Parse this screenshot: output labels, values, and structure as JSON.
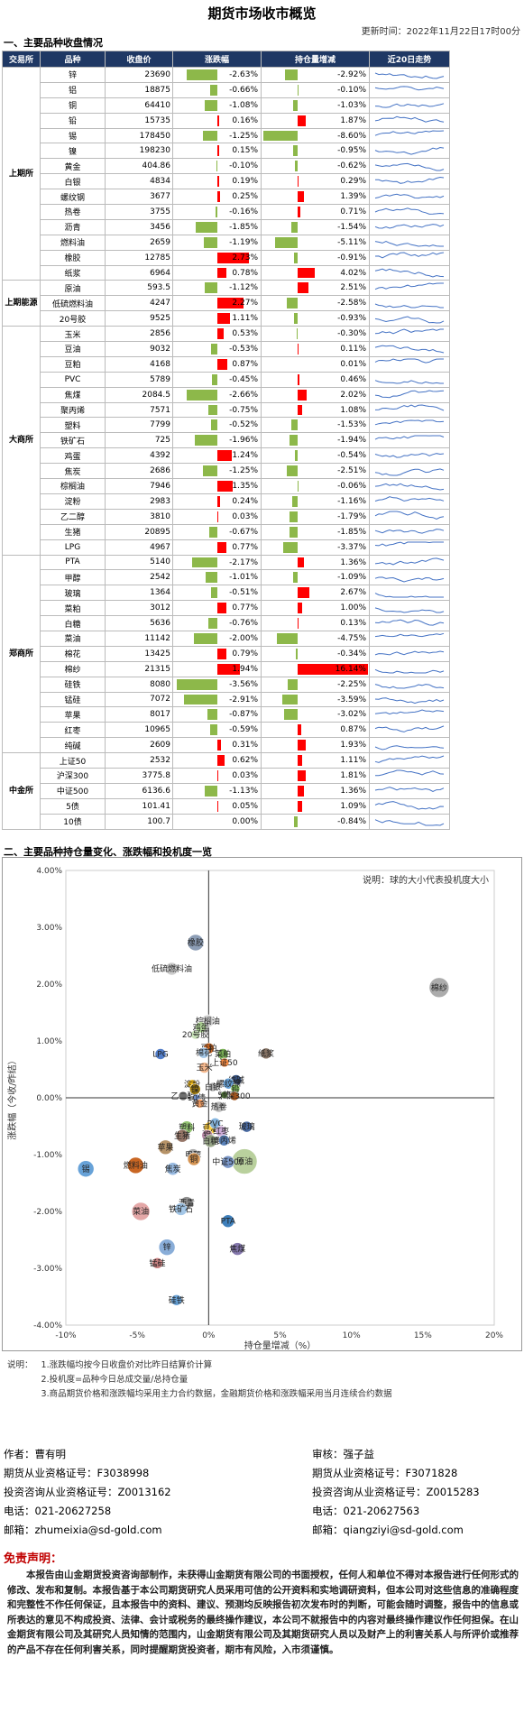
{
  "header": {
    "title": "期货市场收市概览",
    "update": "更新时间：2022年11月22日17时00分"
  },
  "section1": "一、主要品种收盘情况",
  "section2": "二、主要品种持仓量变化、涨跌幅和投机度一览",
  "columns": [
    "交易所",
    "品种",
    "收盘价",
    "涨跌幅",
    "持仓量增减",
    "近20日走势"
  ],
  "colors": {
    "header_bg": "#1f3864",
    "up": "#ff0000",
    "down": "#8db84a"
  },
  "exchanges": [
    {
      "name": "上期所",
      "rows": [
        {
          "n": "锌",
          "p": "23690",
          "c": "-2.63%",
          "cv": -2.63,
          "o": "-2.92%",
          "ov": -2.92
        },
        {
          "n": "铝",
          "p": "18875",
          "c": "-0.66%",
          "cv": -0.66,
          "o": "-0.10%",
          "ov": -0.1
        },
        {
          "n": "铜",
          "p": "64410",
          "c": "-1.08%",
          "cv": -1.08,
          "o": "-1.03%",
          "ov": -1.03
        },
        {
          "n": "铅",
          "p": "15735",
          "c": "0.16%",
          "cv": 0.16,
          "o": "1.87%",
          "ov": 1.87
        },
        {
          "n": "锡",
          "p": "178450",
          "c": "-1.25%",
          "cv": -1.25,
          "o": "-8.60%",
          "ov": -8.6
        },
        {
          "n": "镍",
          "p": "198230",
          "c": "0.15%",
          "cv": 0.15,
          "o": "-0.95%",
          "ov": -0.95
        },
        {
          "n": "黄金",
          "p": "404.86",
          "c": "-0.10%",
          "cv": -0.1,
          "o": "-0.62%",
          "ov": -0.62
        },
        {
          "n": "白银",
          "p": "4834",
          "c": "0.19%",
          "cv": 0.19,
          "o": "0.29%",
          "ov": 0.29
        },
        {
          "n": "螺纹钢",
          "p": "3677",
          "c": "0.25%",
          "cv": 0.25,
          "o": "1.39%",
          "ov": 1.39
        },
        {
          "n": "热卷",
          "p": "3755",
          "c": "-0.16%",
          "cv": -0.16,
          "o": "0.71%",
          "ov": 0.71
        },
        {
          "n": "沥青",
          "p": "3456",
          "c": "-1.85%",
          "cv": -1.85,
          "o": "-1.54%",
          "ov": -1.54
        },
        {
          "n": "燃料油",
          "p": "2659",
          "c": "-1.19%",
          "cv": -1.19,
          "o": "-5.11%",
          "ov": -5.11
        },
        {
          "n": "橡胶",
          "p": "12785",
          "c": "2.73%",
          "cv": 2.73,
          "o": "-0.91%",
          "ov": -0.91
        },
        {
          "n": "纸浆",
          "p": "6964",
          "c": "0.78%",
          "cv": 0.78,
          "o": "4.02%",
          "ov": 4.02
        }
      ]
    },
    {
      "name": "上期能源",
      "rows": [
        {
          "n": "原油",
          "p": "593.5",
          "c": "-1.12%",
          "cv": -1.12,
          "o": "2.51%",
          "ov": 2.51
        },
        {
          "n": "低硫燃料油",
          "p": "4247",
          "c": "2.27%",
          "cv": 2.27,
          "o": "-2.58%",
          "ov": -2.58
        },
        {
          "n": "20号胶",
          "p": "9525",
          "c": "1.11%",
          "cv": 1.11,
          "o": "-0.93%",
          "ov": -0.93
        }
      ]
    },
    {
      "name": "大商所",
      "rows": [
        {
          "n": "玉米",
          "p": "2856",
          "c": "0.53%",
          "cv": 0.53,
          "o": "-0.30%",
          "ov": -0.3
        },
        {
          "n": "豆油",
          "p": "9032",
          "c": "-0.53%",
          "cv": -0.53,
          "o": "0.11%",
          "ov": 0.11
        },
        {
          "n": "豆粕",
          "p": "4168",
          "c": "0.87%",
          "cv": 0.87,
          "o": "0.01%",
          "ov": 0.01
        },
        {
          "n": "PVC",
          "p": "5789",
          "c": "-0.45%",
          "cv": -0.45,
          "o": "0.46%",
          "ov": 0.46
        },
        {
          "n": "焦煤",
          "p": "2084.5",
          "c": "-2.66%",
          "cv": -2.66,
          "o": "2.02%",
          "ov": 2.02
        },
        {
          "n": "聚丙烯",
          "p": "7571",
          "c": "-0.75%",
          "cv": -0.75,
          "o": "1.08%",
          "ov": 1.08
        },
        {
          "n": "塑料",
          "p": "7799",
          "c": "-0.52%",
          "cv": -0.52,
          "o": "-1.53%",
          "ov": -1.53
        },
        {
          "n": "铁矿石",
          "p": "725",
          "c": "-1.96%",
          "cv": -1.96,
          "o": "-1.94%",
          "ov": -1.94
        },
        {
          "n": "鸡蛋",
          "p": "4392",
          "c": "1.24%",
          "cv": 1.24,
          "o": "-0.54%",
          "ov": -0.54
        },
        {
          "n": "焦炭",
          "p": "2686",
          "c": "-1.25%",
          "cv": -1.25,
          "o": "-2.51%",
          "ov": -2.51
        },
        {
          "n": "棕榈油",
          "p": "7946",
          "c": "1.35%",
          "cv": 1.35,
          "o": "-0.06%",
          "ov": -0.06
        },
        {
          "n": "淀粉",
          "p": "2983",
          "c": "0.24%",
          "cv": 0.24,
          "o": "-1.16%",
          "ov": -1.16
        },
        {
          "n": "乙二醇",
          "p": "3810",
          "c": "0.03%",
          "cv": 0.03,
          "o": "-1.79%",
          "ov": -1.79
        },
        {
          "n": "生猪",
          "p": "20895",
          "c": "-0.67%",
          "cv": -0.67,
          "o": "-1.85%",
          "ov": -1.85
        },
        {
          "n": "LPG",
          "p": "4967",
          "c": "0.77%",
          "cv": 0.77,
          "o": "-3.37%",
          "ov": -3.37
        }
      ]
    },
    {
      "name": "郑商所",
      "rows": [
        {
          "n": "PTA",
          "p": "5140",
          "c": "-2.17%",
          "cv": -2.17,
          "o": "1.36%",
          "ov": 1.36
        },
        {
          "n": "甲醇",
          "p": "2542",
          "c": "-1.01%",
          "cv": -1.01,
          "o": "-1.09%",
          "ov": -1.09
        },
        {
          "n": "玻璃",
          "p": "1364",
          "c": "-0.51%",
          "cv": -0.51,
          "o": "2.67%",
          "ov": 2.67
        },
        {
          "n": "菜粕",
          "p": "3012",
          "c": "0.77%",
          "cv": 0.77,
          "o": "1.00%",
          "ov": 1.0
        },
        {
          "n": "白糖",
          "p": "5636",
          "c": "-0.76%",
          "cv": -0.76,
          "o": "0.13%",
          "ov": 0.13
        },
        {
          "n": "菜油",
          "p": "11142",
          "c": "-2.00%",
          "cv": -2.0,
          "o": "-4.75%",
          "ov": -4.75
        },
        {
          "n": "棉花",
          "p": "13425",
          "c": "0.79%",
          "cv": 0.79,
          "o": "-0.34%",
          "ov": -0.34
        },
        {
          "n": "棉纱",
          "p": "21315",
          "c": "1.94%",
          "cv": 1.94,
          "o": "16.14%",
          "ov": 16.14
        },
        {
          "n": "硅铁",
          "p": "8080",
          "c": "-3.56%",
          "cv": -3.56,
          "o": "-2.25%",
          "ov": -2.25
        },
        {
          "n": "锰硅",
          "p": "7072",
          "c": "-2.91%",
          "cv": -2.91,
          "o": "-3.59%",
          "ov": -3.59
        },
        {
          "n": "苹果",
          "p": "8017",
          "c": "-0.87%",
          "cv": -0.87,
          "o": "-3.02%",
          "ov": -3.02
        },
        {
          "n": "红枣",
          "p": "10965",
          "c": "-0.59%",
          "cv": -0.59,
          "o": "0.87%",
          "ov": 0.87
        },
        {
          "n": "纯碱",
          "p": "2609",
          "c": "0.31%",
          "cv": 0.31,
          "o": "1.93%",
          "ov": 1.93
        }
      ]
    },
    {
      "name": "中金所",
      "rows": [
        {
          "n": "上证50",
          "p": "2532",
          "c": "0.62%",
          "cv": 0.62,
          "o": "1.11%",
          "ov": 1.11
        },
        {
          "n": "沪深300",
          "p": "3775.8",
          "c": "0.03%",
          "cv": 0.03,
          "o": "1.81%",
          "ov": 1.81
        },
        {
          "n": "中证500",
          "p": "6136.6",
          "c": "-1.13%",
          "cv": -1.13,
          "o": "1.36%",
          "ov": 1.36
        },
        {
          "n": "5债",
          "p": "101.41",
          "c": "0.05%",
          "cv": 0.05,
          "o": "1.09%",
          "ov": 1.09
        },
        {
          "n": "10债",
          "p": "100.7",
          "c": "0.00%",
          "cv": 0.0,
          "o": "-0.84%",
          "ov": -0.84
        }
      ]
    }
  ],
  "chart_data": {
    "type": "scatter",
    "note": "说明：球的大小代表投机度大小",
    "xlabel": "持仓量增减（%）",
    "ylabel": "涨跌幅（今收/昨结）",
    "xlim": [
      -10,
      20
    ],
    "ylim": [
      -4,
      4
    ],
    "xticks": [
      "-10%",
      "-5%",
      "0%",
      "5%",
      "10%",
      "15%",
      "20%"
    ],
    "yticks": [
      "4.00%",
      "3.00%",
      "2.00%",
      "1.00%",
      "0.00%",
      "-1.00%",
      "-2.00%",
      "-3.00%",
      "-4.00%"
    ],
    "points": [
      {
        "label": "橡胶",
        "x": -0.91,
        "y": 2.73,
        "s": 9,
        "c": "#8496b0"
      },
      {
        "label": "低硫燃料油",
        "x": -2.58,
        "y": 2.27,
        "s": 7,
        "c": "#c8c8c8"
      },
      {
        "label": "棕榈油",
        "x": -0.06,
        "y": 1.35,
        "s": 7,
        "c": "#d9d9d9"
      },
      {
        "label": "鸡蛋",
        "x": -0.54,
        "y": 1.24,
        "s": 6,
        "c": "#a9d18e"
      },
      {
        "label": "20号胶",
        "x": -0.93,
        "y": 1.11,
        "s": 5,
        "c": "#c5e0b4"
      },
      {
        "label": "纸浆",
        "x": 4.02,
        "y": 0.78,
        "s": 6,
        "c": "#7f6a5a"
      },
      {
        "label": "豆粕",
        "x": 0.01,
        "y": 0.87,
        "s": 6,
        "c": "#c55a11"
      },
      {
        "label": "菜油",
        "x": -4.75,
        "y": -2.0,
        "s": 10,
        "c": "#e2a0a0"
      },
      {
        "label": "棉花",
        "x": -0.34,
        "y": 0.79,
        "s": 6,
        "c": "#9dc3e6"
      },
      {
        "label": "玉米",
        "x": -0.3,
        "y": 0.53,
        "s": 6,
        "c": "#f4b183"
      },
      {
        "label": "硅铁",
        "x": -2.25,
        "y": -3.56,
        "s": 6,
        "c": "#5b9bd5"
      },
      {
        "label": "菜粕",
        "x": 1.0,
        "y": 0.77,
        "s": 6,
        "c": "#70ad47"
      },
      {
        "label": "LPG",
        "x": -3.37,
        "y": 0.77,
        "s": 6,
        "c": "#4472c4"
      },
      {
        "label": "上证50",
        "x": 1.11,
        "y": 0.62,
        "s": 5,
        "c": "#ed7d31"
      },
      {
        "label": "纯碱",
        "x": 1.93,
        "y": 0.31,
        "s": 6,
        "c": "#264478"
      },
      {
        "label": "白银",
        "x": 0.29,
        "y": 0.19,
        "s": 5,
        "c": "#a5a5a5"
      },
      {
        "label": "淀粉",
        "x": -1.16,
        "y": 0.24,
        "s": 5,
        "c": "#ffc000"
      },
      {
        "label": "螺纹钢",
        "x": 1.39,
        "y": 0.25,
        "s": 6,
        "c": "#5b9bd5"
      },
      {
        "label": "铅",
        "x": 1.87,
        "y": 0.16,
        "s": 5,
        "c": "#70ad47"
      },
      {
        "label": "沪深300",
        "x": 1.81,
        "y": 0.03,
        "s": 5,
        "c": "#9e480e"
      },
      {
        "label": "乙二醇",
        "x": -1.79,
        "y": 0.03,
        "s": 5,
        "c": "#636363"
      },
      {
        "label": "镍",
        "x": -0.95,
        "y": 0.15,
        "s": 6,
        "c": "#997300"
      },
      {
        "label": "5债",
        "x": 1.09,
        "y": 0.05,
        "s": 4,
        "c": "#43682b"
      },
      {
        "label": "10债",
        "x": -0.84,
        "y": 0.0,
        "s": 4,
        "c": "#698ed0"
      },
      {
        "label": "黄金",
        "x": -0.62,
        "y": -0.1,
        "s": 5,
        "c": "#f1975a"
      },
      {
        "label": "热卷",
        "x": 0.71,
        "y": -0.16,
        "s": 6,
        "c": "#b7b7b7"
      },
      {
        "label": "豆油",
        "x": 0.11,
        "y": -0.53,
        "s": 7,
        "c": "#ffcd33"
      },
      {
        "label": "PVC",
        "x": 0.46,
        "y": -0.45,
        "s": 6,
        "c": "#7cafdd"
      },
      {
        "label": "塑料",
        "x": -1.53,
        "y": -0.52,
        "s": 7,
        "c": "#8cc168"
      },
      {
        "label": "玻璃",
        "x": 2.67,
        "y": -0.51,
        "s": 6,
        "c": "#3a5e9a"
      },
      {
        "label": "红枣",
        "x": 0.87,
        "y": -0.59,
        "s": 6,
        "c": "#c9a4d4"
      },
      {
        "label": "铝",
        "x": -0.1,
        "y": -0.66,
        "s": 6,
        "c": "#af7e9e"
      },
      {
        "label": "生猪",
        "x": -1.85,
        "y": -0.67,
        "s": 7,
        "c": "#8e6b5c"
      },
      {
        "label": "聚丙烯",
        "x": 1.08,
        "y": -0.75,
        "s": 6,
        "c": "#4d78b5"
      },
      {
        "label": "白糖",
        "x": 0.13,
        "y": -0.76,
        "s": 7,
        "c": "#91a07f"
      },
      {
        "label": "苹果",
        "x": -3.02,
        "y": -0.87,
        "s": 8,
        "c": "#b08a5c"
      },
      {
        "label": "甲醇",
        "x": -1.09,
        "y": -1.01,
        "s": 7,
        "c": "#a6a6a6"
      },
      {
        "label": "铜",
        "x": -1.03,
        "y": -1.08,
        "s": 7,
        "c": "#d38d46"
      },
      {
        "label": "原油",
        "x": 2.51,
        "y": -1.12,
        "s": 14,
        "c": "#b4cd95"
      },
      {
        "label": "中证500",
        "x": 1.36,
        "y": -1.13,
        "s": 7,
        "c": "#6f8fc4"
      },
      {
        "label": "燃料油",
        "x": -5.11,
        "y": -1.19,
        "s": 9,
        "c": "#c55a11"
      },
      {
        "label": "焦炭",
        "x": -2.51,
        "y": -1.25,
        "s": 7,
        "c": "#8fb4de"
      },
      {
        "label": "锡",
        "x": -8.6,
        "y": -1.25,
        "s": 9,
        "c": "#5b9bd5"
      },
      {
        "label": "沥青",
        "x": -1.54,
        "y": -1.85,
        "s": 7,
        "c": "#888"
      },
      {
        "label": "铁矿石",
        "x": -1.94,
        "y": -1.96,
        "s": 7,
        "c": "#9dc3e6"
      },
      {
        "label": "棉纱",
        "x": 16.14,
        "y": 1.94,
        "s": 11,
        "c": "#a5a5a5"
      },
      {
        "label": "PTA",
        "x": 1.36,
        "y": -2.17,
        "s": 7,
        "c": "#2e75b6"
      },
      {
        "label": "锌",
        "x": -2.92,
        "y": -2.63,
        "s": 9,
        "c": "#7fa7d5"
      },
      {
        "label": "焦煤",
        "x": 2.02,
        "y": -2.66,
        "s": 7,
        "c": "#7a6ca6"
      },
      {
        "label": "锰硅",
        "x": -3.59,
        "y": -2.91,
        "s": 6,
        "c": "#c47777"
      }
    ]
  },
  "notes_label": "说明：",
  "notes": [
    "1.涨跌幅均按今日收盘价对比昨日结算价计算",
    "2.投机度=品种今日总成交量/总持仓量",
    "3.商品期货价格和涨跌幅均采用主力合约数据，金融期货价格和涨跌幅采用当月连续合约数据"
  ],
  "authors": [
    {
      "role": "作者：曹有明",
      "cert": "期货从业资格证号：F3038998",
      "inv": "投资咨询从业资格证号：Z0013162",
      "tel": "电话：021-20627258",
      "mail": "邮箱：zhumeixia@sd-gold.com"
    },
    {
      "role": "审核：强子益",
      "cert": "期货从业资格证号：F3071828",
      "inv": "投资咨询从业资格证号：Z0015283",
      "tel": "电话：021-20627563",
      "mail": "邮箱：qiangziyi@sd-gold.com"
    }
  ],
  "disclaimer_title": "免责声明：",
  "disclaimer": "本报告由山金期货投资咨询部制作，未获得山金期货有限公司的书面授权，任何人和单位不得对本报告进行任何形式的修改、发布和复制。本报告基于本公司期货研究人员采用可信的公开资料和实地调研资料，但本公司对这些信息的准确程度和完整性不作任何保证，且本报告中的资料、建议、预测均反映报告初次发布时的判断，可能会随时调整，报告中的信息或所表达的意见不构成投资、法律、会计或税务的最终操作建议，本公司不就报告中的内容对最终操作建议作任何担保。在山金期货有限公司及其研究人员知情的范围内，山金期货有限公司及其期货研究人员以及财产上的利害关系人与所评价或推荐的产品不存在任何利害关系，同时提醒期货投资者，期市有风险，入市须谨慎。"
}
